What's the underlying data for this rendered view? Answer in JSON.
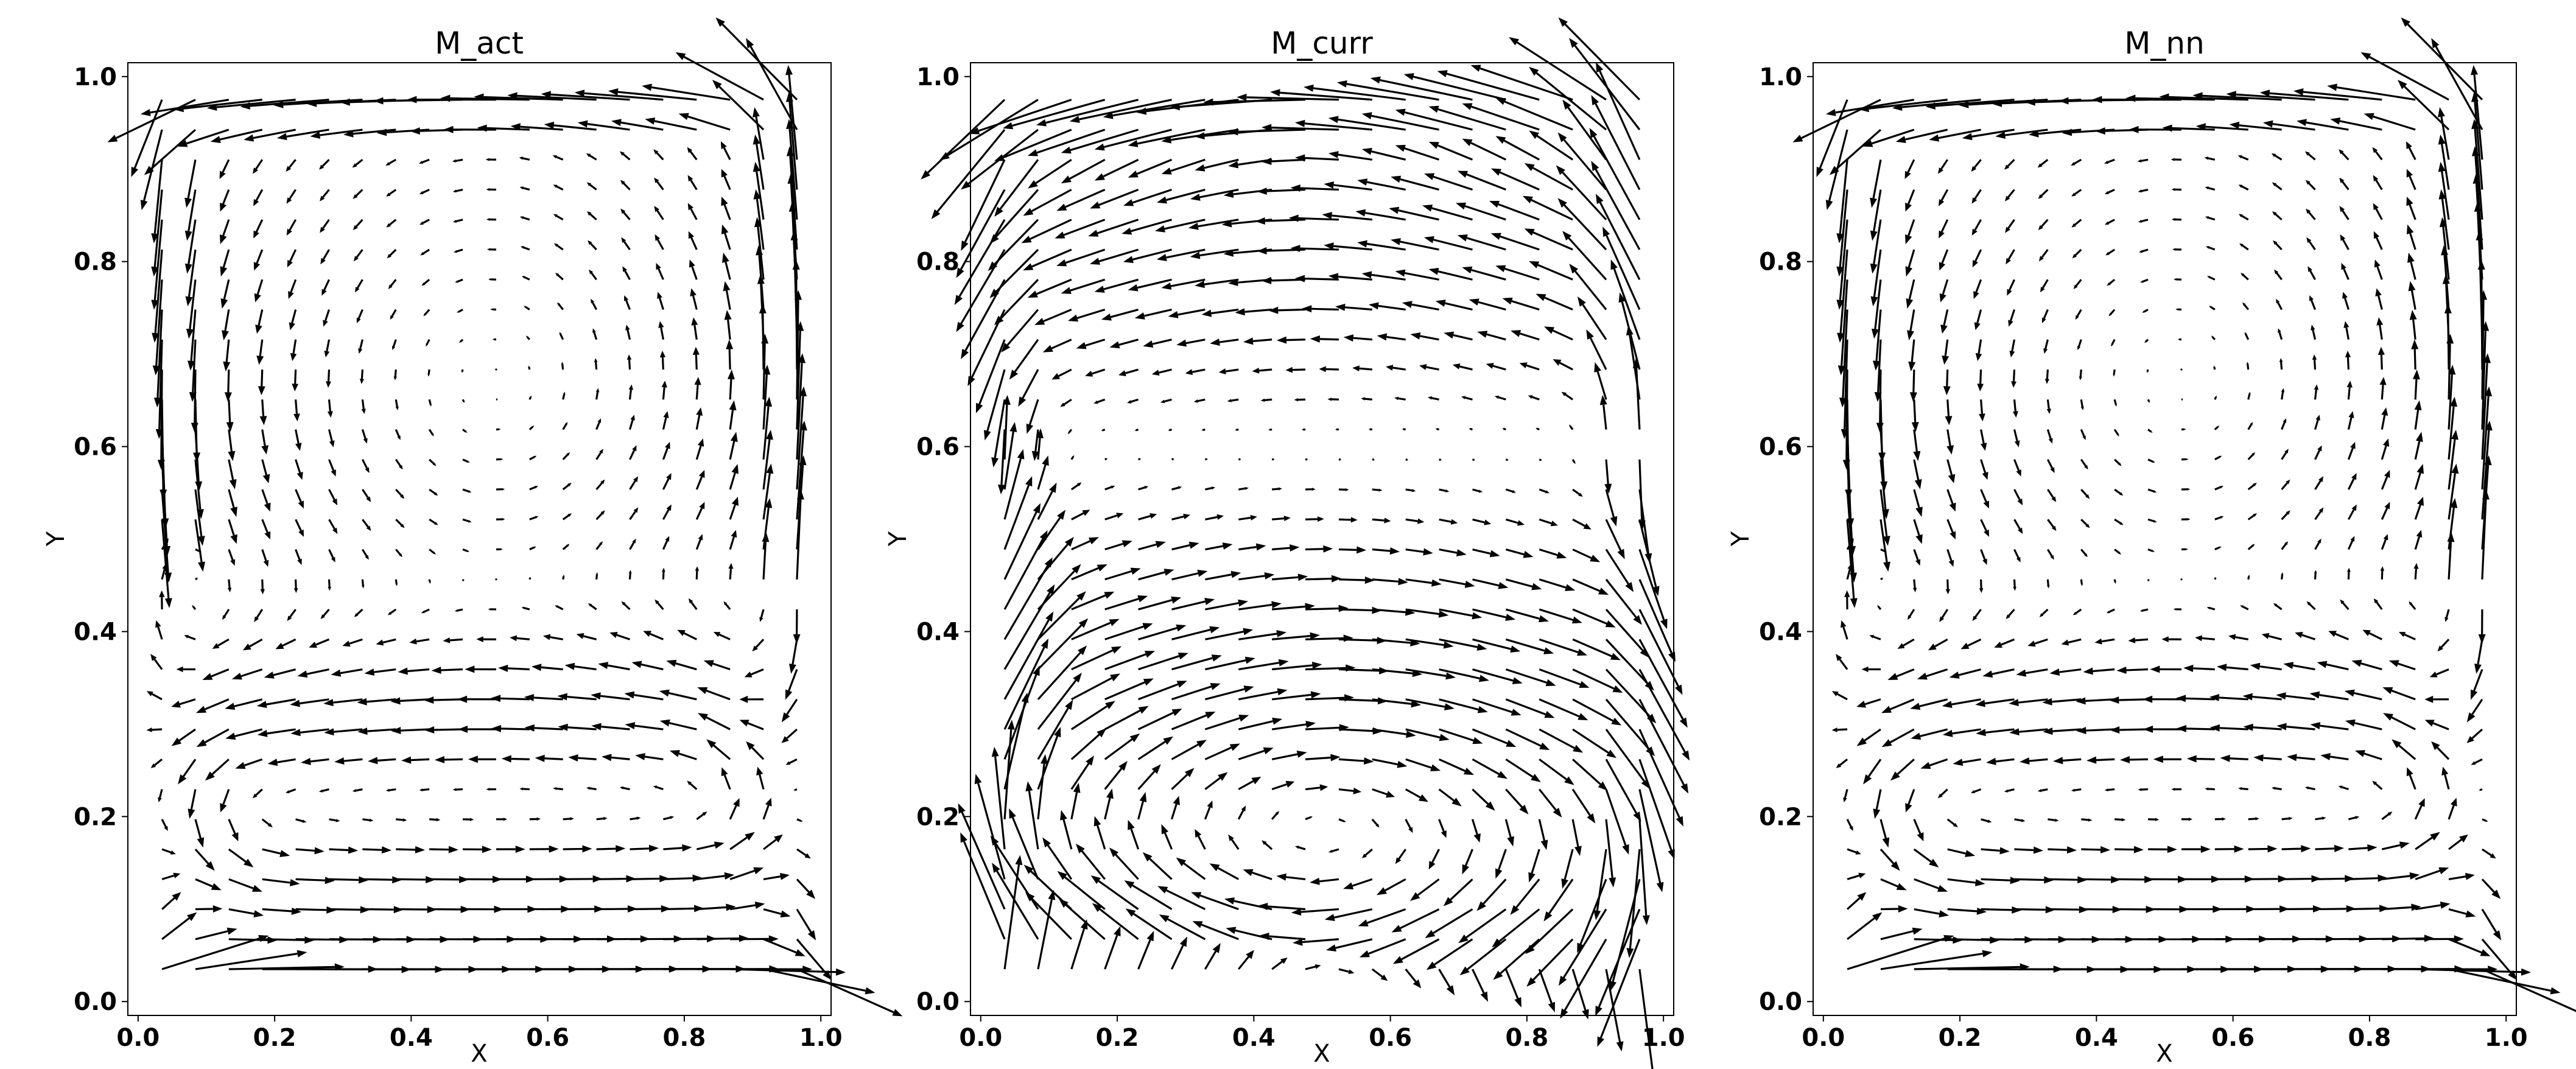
{
  "chart_data": [
    {
      "type": "quiver",
      "title": "M_act",
      "xlabel": "X",
      "ylabel": "Y",
      "xlim": [
        0.0,
        1.0
      ],
      "ylim": [
        0.0,
        1.0
      ],
      "xticks": [
        "0.0",
        "0.2",
        "0.4",
        "0.6",
        "0.8",
        "1.0"
      ],
      "yticks": [
        "0.0",
        "0.2",
        "0.4",
        "0.6",
        "0.8",
        "1.0"
      ],
      "grid": false,
      "field_model": "two stacked counter-rotating cells: upper vortex centred near (0.5, 0.67), lower rolls between y≈0.05 and y≈0.40",
      "grid_points": {
        "nx": 20,
        "ny": 30,
        "x_range": [
          0.035,
          0.965
        ],
        "y_range": [
          0.035,
          0.975
        ]
      }
    },
    {
      "type": "quiver",
      "title": "M_curr",
      "xlabel": "X",
      "ylabel": "Y",
      "xlim": [
        0.0,
        1.0
      ],
      "ylim": [
        0.0,
        1.0
      ],
      "xticks": [
        "0.0",
        "0.2",
        "0.4",
        "0.6",
        "0.8",
        "1.0"
      ],
      "yticks": [
        "0.0",
        "0.2",
        "0.4",
        "0.6",
        "0.8",
        "1.0"
      ],
      "grid": false,
      "field_model": "horizontal shear layers across full height, weakest near y≈0.60, strongest near y≈0.20 and y≈0.88",
      "grid_points": {
        "nx": 20,
        "ny": 30,
        "x_range": [
          0.035,
          0.965
        ],
        "y_range": [
          0.035,
          0.975
        ]
      }
    },
    {
      "type": "quiver",
      "title": "M_nn",
      "xlabel": "X",
      "ylabel": "Y",
      "xlim": [
        0.0,
        1.0
      ],
      "ylim": [
        0.0,
        1.0
      ],
      "xticks": [
        "0.0",
        "0.2",
        "0.4",
        "0.6",
        "0.8",
        "1.0"
      ],
      "yticks": [
        "0.0",
        "0.2",
        "0.4",
        "0.6",
        "0.8",
        "1.0"
      ],
      "grid": false,
      "field_model": "two stacked counter-rotating cells: upper vortex centred near (0.5, 0.67), lower rolls between y≈0.05 and y≈0.40",
      "grid_points": {
        "nx": 20,
        "ny": 30,
        "x_range": [
          0.035,
          0.965
        ],
        "y_range": [
          0.035,
          0.975
        ]
      }
    }
  ]
}
